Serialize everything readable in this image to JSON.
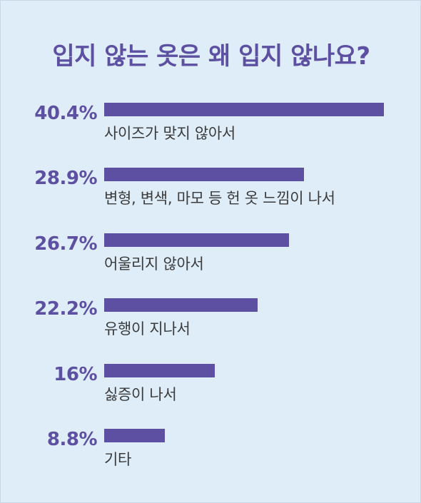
{
  "title": "입지 않는 옷은 왜 입지 않나요?",
  "colors": {
    "background": "#dfedf8",
    "accent": "#5d4fa2",
    "label": "#3a3a3a"
  },
  "chart_data": {
    "type": "bar",
    "orientation": "horizontal",
    "title": "입지 않는 옷은 왜 입지 않나요?",
    "xlim": [
      0,
      40.4
    ],
    "categories": [
      "사이즈가 맞지 않아서",
      "변형, 변색, 마모 등 헌 옷 느낌이 나서",
      "어울리지 않아서",
      "유행이 지나서",
      "싫증이 나서",
      "기타"
    ],
    "values": [
      40.4,
      28.9,
      26.7,
      22.2,
      16,
      8.8
    ],
    "value_labels": [
      "40.4%",
      "28.9%",
      "26.7%",
      "22.2%",
      "16%",
      "8.8%"
    ]
  }
}
